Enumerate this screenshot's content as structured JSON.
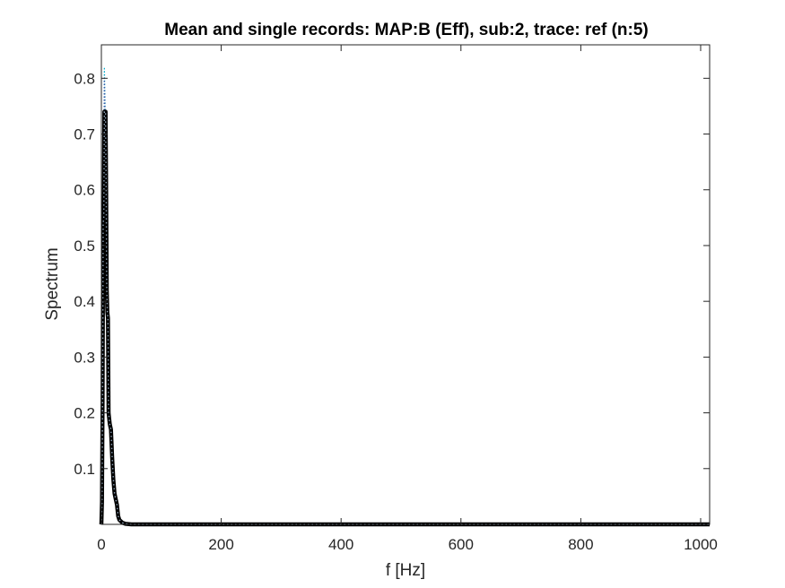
{
  "chart_data": {
    "type": "line",
    "title": "Mean and single records: MAP:B (Eff), sub:2, trace: ref (n:5)",
    "xlabel": "f [Hz]",
    "ylabel": "Spectrum",
    "xlim": [
      0,
      1015
    ],
    "ylim": [
      0,
      0.86
    ],
    "xticks": [
      0,
      200,
      400,
      600,
      800,
      1000
    ],
    "yticks": [
      0.1,
      0.2,
      0.3,
      0.4,
      0.5,
      0.6,
      0.7,
      0.8
    ],
    "grid": false,
    "legend": "none",
    "series": [
      {
        "role": "single",
        "color": "#00a8c8",
        "style": "dotted",
        "x": [
          0,
          1,
          2,
          3,
          4,
          5,
          6,
          7,
          8,
          9,
          10,
          11,
          12,
          13,
          14,
          16,
          18,
          20,
          22,
          24,
          26,
          28,
          30,
          35,
          40,
          50,
          1015
        ],
        "y": [
          0.0,
          0.05,
          0.25,
          0.5,
          0.58,
          0.82,
          0.76,
          0.7,
          0.62,
          0.45,
          0.4,
          0.36,
          0.22,
          0.2,
          0.19,
          0.17,
          0.13,
          0.09,
          0.06,
          0.05,
          0.04,
          0.02,
          0.01,
          0.004,
          0.002,
          0.0,
          0.0
        ]
      },
      {
        "role": "single",
        "color": "#3b5ba8",
        "style": "dotted",
        "x": [
          0,
          1,
          2,
          3,
          4,
          5,
          6,
          7,
          8,
          9,
          10,
          11,
          12,
          13,
          14,
          16,
          18,
          20,
          22,
          24,
          26,
          28,
          30,
          35,
          40,
          50,
          1015
        ],
        "y": [
          0.0,
          0.04,
          0.3,
          0.56,
          0.6,
          0.8,
          0.74,
          0.72,
          0.6,
          0.42,
          0.38,
          0.33,
          0.2,
          0.19,
          0.18,
          0.16,
          0.12,
          0.08,
          0.055,
          0.045,
          0.035,
          0.015,
          0.008,
          0.003,
          0.001,
          0.0,
          0.0
        ]
      },
      {
        "role": "single",
        "color": "#d4a017",
        "style": "dotted",
        "x": [
          0,
          1,
          2,
          3,
          4,
          5,
          6,
          7,
          8,
          9,
          10,
          11,
          12,
          13,
          14,
          16,
          18,
          20,
          22,
          24,
          26,
          28,
          30,
          35,
          40,
          50,
          1015
        ],
        "y": [
          0.0,
          0.03,
          0.2,
          0.52,
          0.54,
          0.7,
          0.72,
          0.7,
          0.58,
          0.4,
          0.37,
          0.35,
          0.21,
          0.2,
          0.19,
          0.18,
          0.13,
          0.09,
          0.06,
          0.05,
          0.04,
          0.02,
          0.01,
          0.004,
          0.002,
          0.0,
          0.0
        ]
      },
      {
        "role": "single",
        "color": "#6a6a6a",
        "style": "dotted",
        "x": [
          0,
          1,
          2,
          3,
          4,
          5,
          6,
          7,
          8,
          9,
          10,
          11,
          12,
          13,
          14,
          16,
          18,
          20,
          22,
          24,
          26,
          28,
          30,
          35,
          40,
          50,
          1015
        ],
        "y": [
          0.0,
          0.05,
          0.22,
          0.54,
          0.56,
          0.72,
          0.74,
          0.73,
          0.61,
          0.43,
          0.39,
          0.37,
          0.19,
          0.18,
          0.18,
          0.17,
          0.12,
          0.08,
          0.055,
          0.045,
          0.03,
          0.02,
          0.01,
          0.003,
          0.001,
          0.0,
          0.0
        ]
      },
      {
        "role": "single",
        "color": "#8c6bb1",
        "style": "dotted",
        "x": [
          0,
          1,
          2,
          3,
          4,
          5,
          6,
          7,
          8,
          9,
          10,
          11,
          12,
          13,
          14,
          16,
          18,
          20,
          22,
          24,
          26,
          28,
          30,
          35,
          40,
          50,
          1015
        ],
        "y": [
          0.0,
          0.04,
          0.21,
          0.53,
          0.55,
          0.74,
          0.73,
          0.74,
          0.59,
          0.41,
          0.38,
          0.36,
          0.2,
          0.19,
          0.18,
          0.17,
          0.12,
          0.085,
          0.055,
          0.05,
          0.035,
          0.015,
          0.008,
          0.003,
          0.001,
          0.0,
          0.0
        ]
      },
      {
        "role": "mean",
        "color": "#000000",
        "style": "solid",
        "x": [
          0,
          1,
          2,
          3,
          4,
          5,
          6,
          7,
          8,
          9,
          10,
          11,
          12,
          13,
          14,
          16,
          18,
          20,
          22,
          24,
          26,
          28,
          30,
          35,
          40,
          50,
          1015
        ],
        "y": [
          0.0,
          0.04,
          0.22,
          0.54,
          0.55,
          0.74,
          0.74,
          0.74,
          0.6,
          0.42,
          0.38,
          0.37,
          0.2,
          0.19,
          0.18,
          0.17,
          0.12,
          0.08,
          0.055,
          0.045,
          0.035,
          0.015,
          0.008,
          0.003,
          0.001,
          0.0,
          0.0
        ]
      }
    ]
  }
}
